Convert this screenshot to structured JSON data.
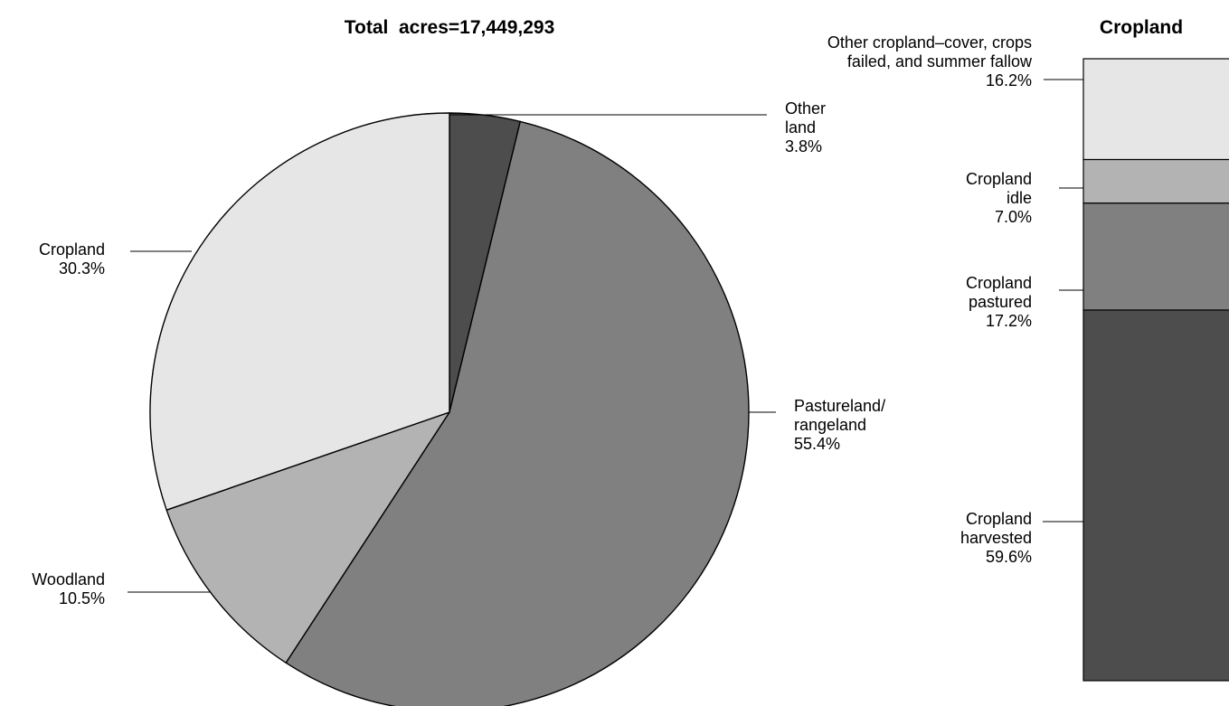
{
  "chart_data": [
    {
      "type": "pie",
      "title": "Total  acres=17,449,293",
      "unit": "%",
      "start_angle_deg": 0,
      "direction": "clockwise",
      "slices": [
        {
          "name": "Other land",
          "label_lines": [
            "Other",
            "land"
          ],
          "value": 3.8,
          "value_text": "3.8%",
          "color": "#4d4d4d",
          "label_side": "right"
        },
        {
          "name": "Pastureland/rangeland",
          "label_lines": [
            "Pastureland/",
            "rangeland"
          ],
          "value": 55.4,
          "value_text": "55.4%",
          "color": "#808080",
          "label_side": "right"
        },
        {
          "name": "Woodland",
          "label_lines": [
            "Woodland"
          ],
          "value": 10.5,
          "value_text": "10.5%",
          "color": "#b3b3b3",
          "label_side": "left"
        },
        {
          "name": "Cropland",
          "label_lines": [
            "Cropland"
          ],
          "value": 30.3,
          "value_text": "30.3%",
          "color": "#e6e6e6",
          "label_side": "left"
        }
      ]
    },
    {
      "type": "bar",
      "stacked": true,
      "title": "Cropland",
      "unit": "%",
      "ylim": [
        0,
        100
      ],
      "segments": [
        {
          "name": "Cropland harvested",
          "label_lines": [
            "Cropland",
            "harvested"
          ],
          "value": 59.6,
          "value_text": "59.6%",
          "color": "#4d4d4d"
        },
        {
          "name": "Cropland pastured",
          "label_lines": [
            "Cropland",
            "pastured"
          ],
          "value": 17.2,
          "value_text": "17.2%",
          "color": "#808080"
        },
        {
          "name": "Cropland idle",
          "label_lines": [
            "Cropland",
            "idle"
          ],
          "value": 7.0,
          "value_text": "7.0%",
          "color": "#b3b3b3"
        },
        {
          "name": "Other cropland–cover, crops failed, and summer fallow",
          "label_lines": [
            "Other cropland–cover, crops",
            "failed, and summer fallow"
          ],
          "value": 16.2,
          "value_text": "16.2%",
          "color": "#e6e6e6"
        }
      ]
    }
  ]
}
